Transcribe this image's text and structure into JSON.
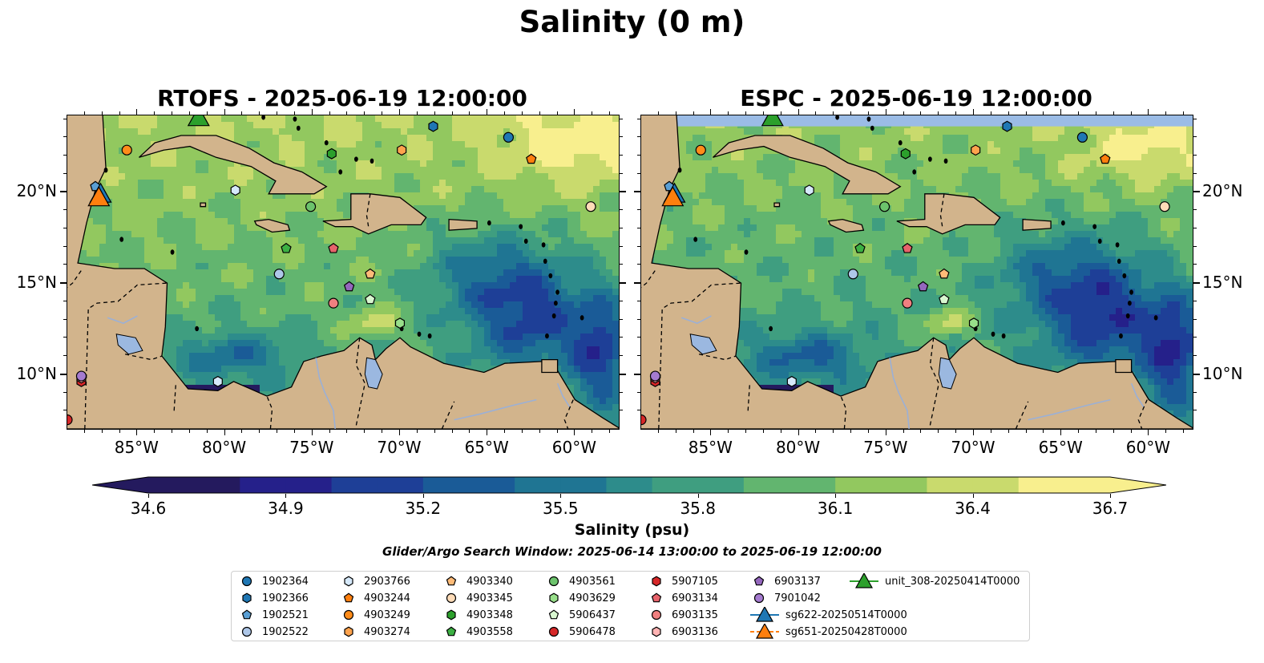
{
  "suptitle": "Salinity (0 m)",
  "panels": [
    {
      "title": "RTOFS - 2025-06-19 12:00:00"
    },
    {
      "title": "ESPC - 2025-06-19 12:00:00"
    }
  ],
  "map": {
    "lon_range": [
      -89,
      -57.5
    ],
    "lat_range": [
      7,
      24.2
    ],
    "lon_ticks": [
      "85°W",
      "80°W",
      "75°W",
      "70°W",
      "65°W",
      "60°W"
    ],
    "lat_ticks": [
      "20°N",
      "15°N",
      "10°N"
    ],
    "land_color": "#d2b48c",
    "lake_color": "#9bb8e0",
    "no_data_color": "#9bbce6"
  },
  "colorbar": {
    "min": 34.6,
    "max": 36.7,
    "ticks": [
      "34.6",
      "34.9",
      "35.2",
      "35.5",
      "35.8",
      "36.1",
      "36.4",
      "36.7"
    ],
    "label": "Salinity (psu)",
    "colors": [
      "#241a5e",
      "#25208a",
      "#1e3f97",
      "#1a5b97",
      "#1f7593",
      "#2d8c8b",
      "#3f9e80",
      "#62b56f",
      "#92c85f",
      "#c9da6d",
      "#f8ef8e"
    ]
  },
  "search_window": "Glider/Argo Search Window: 2025-06-14 13:00:00 to 2025-06-19 12:00:00",
  "legend": [
    {
      "label": "1902364",
      "marker": "circle",
      "color": "#1f77b4"
    },
    {
      "label": "1902366",
      "marker": "hexagon",
      "color": "#1f77b4"
    },
    {
      "label": "1902521",
      "marker": "pentagon",
      "color": "#5a9fd4"
    },
    {
      "label": "1902522",
      "marker": "circle",
      "color": "#aec7e8"
    },
    {
      "label": "2903766",
      "marker": "hexagon",
      "color": "#d6e9fb"
    },
    {
      "label": "4903244",
      "marker": "pentagon",
      "color": "#ff7f0e"
    },
    {
      "label": "4903249",
      "marker": "circle",
      "color": "#ff8c1a"
    },
    {
      "label": "4903274",
      "marker": "hexagon",
      "color": "#ffa34d"
    },
    {
      "label": "4903340",
      "marker": "pentagon",
      "color": "#ffbb78"
    },
    {
      "label": "4903345",
      "marker": "circle",
      "color": "#ffdcb8"
    },
    {
      "label": "4903348",
      "marker": "hexagon",
      "color": "#2ca02c"
    },
    {
      "label": "4903558",
      "marker": "pentagon",
      "color": "#3cb043"
    },
    {
      "label": "4903561",
      "marker": "circle",
      "color": "#6cc36c"
    },
    {
      "label": "4903629",
      "marker": "hexagon",
      "color": "#98df8a"
    },
    {
      "label": "5906437",
      "marker": "pentagon",
      "color": "#d9f7d0"
    },
    {
      "label": "5906478",
      "marker": "circle",
      "color": "#d62728"
    },
    {
      "label": "5907105",
      "marker": "hexagon",
      "color": "#d62728"
    },
    {
      "label": "6903134",
      "marker": "pentagon",
      "color": "#e7636b"
    },
    {
      "label": "6903135",
      "marker": "circle",
      "color": "#f08080"
    },
    {
      "label": "6903136",
      "marker": "hexagon",
      "color": "#ffb3b3"
    },
    {
      "label": "6903137",
      "marker": "pentagon",
      "color": "#9467bd"
    },
    {
      "label": "7901042",
      "marker": "circle",
      "color": "#a57bd0"
    },
    {
      "label": "sg622-20250514T0000",
      "marker": "triangle",
      "color": "#1f77b4"
    },
    {
      "label": "sg651-20250428T0000",
      "marker": "triangle",
      "color": "#ff7f0e"
    },
    {
      "label": "unit_308-20250414T0000",
      "marker": "triangle",
      "color": "#2ca02c"
    }
  ],
  "observations": [
    {
      "id": "1902364",
      "lon": -63.8,
      "lat": 23.0
    },
    {
      "id": "1902366",
      "lon": -68.1,
      "lat": 23.6
    },
    {
      "id": "1902521",
      "lon": -87.4,
      "lat": 20.3
    },
    {
      "id": "1902522",
      "lon": -76.9,
      "lat": 15.5
    },
    {
      "id": "2903766",
      "lon": -79.4,
      "lat": 20.1
    },
    {
      "id": "2903766",
      "lon": -80.4,
      "lat": 9.6
    },
    {
      "id": "4903244",
      "lon": -62.5,
      "lat": 21.8
    },
    {
      "id": "4903249",
      "lon": -85.6,
      "lat": 22.3
    },
    {
      "id": "4903274",
      "lon": -69.9,
      "lat": 22.3
    },
    {
      "id": "4903340",
      "lon": -71.7,
      "lat": 15.5
    },
    {
      "id": "4903345",
      "lon": -59.1,
      "lat": 19.2
    },
    {
      "id": "4903348",
      "lon": -73.9,
      "lat": 22.1
    },
    {
      "id": "4903558",
      "lon": -76.5,
      "lat": 16.9
    },
    {
      "id": "4903561",
      "lon": -75.1,
      "lat": 19.2
    },
    {
      "id": "4903629",
      "lon": -70.0,
      "lat": 12.8
    },
    {
      "id": "5906437",
      "lon": -71.7,
      "lat": 14.1
    },
    {
      "id": "5906478",
      "lon": -89.0,
      "lat": 7.5
    },
    {
      "id": "5907105",
      "lon": -88.2,
      "lat": 9.6
    },
    {
      "id": "6903134",
      "lon": -73.8,
      "lat": 16.9
    },
    {
      "id": "6903135",
      "lon": -73.8,
      "lat": 13.9
    },
    {
      "id": "6903136",
      "lon": -88.2,
      "lat": 9.8
    },
    {
      "id": "6903137",
      "lon": -72.9,
      "lat": 14.8
    },
    {
      "id": "7901042",
      "lon": -88.2,
      "lat": 9.9
    },
    {
      "id": "sg622-20250514T0000",
      "lon": -87.1,
      "lat": 19.9
    },
    {
      "id": "sg651-20250428T0000",
      "lon": -87.2,
      "lat": 19.7
    },
    {
      "id": "unit_308-20250414T0000",
      "lon": -81.5,
      "lat": 24.1
    }
  ]
}
